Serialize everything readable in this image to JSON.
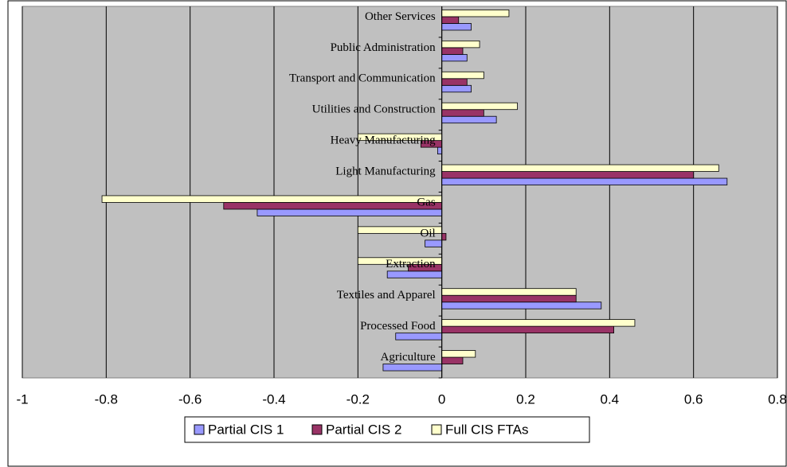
{
  "chart_data": {
    "type": "hbar",
    "categories": [
      "Agriculture",
      "Processed Food",
      "Textiles and Apparel",
      "Extraction",
      "Oil",
      "Gas",
      "Light Manufacturing",
      "Heavy Manufacturing",
      "Utilities and Construction",
      "Transport and Communication",
      "Public Administration",
      "Other Services"
    ],
    "series": [
      {
        "name": "Partial CIS 1",
        "color": "#9999ff",
        "values": [
          -0.14,
          -0.11,
          0.38,
          -0.13,
          -0.04,
          -0.44,
          0.68,
          -0.01,
          0.13,
          0.07,
          0.06,
          0.07
        ]
      },
      {
        "name": "Partial CIS 2",
        "color": "#993366",
        "values": [
          0.05,
          0.41,
          0.32,
          -0.08,
          0.01,
          -0.52,
          0.6,
          -0.05,
          0.1,
          0.06,
          0.05,
          0.04
        ]
      },
      {
        "name": "Full CIS FTAs",
        "color": "#ffffcc",
        "values": [
          0.08,
          0.46,
          0.32,
          -0.2,
          -0.2,
          -0.81,
          0.66,
          -0.2,
          0.18,
          0.1,
          0.09,
          0.16
        ]
      }
    ],
    "xlim": [
      -1,
      0.8
    ],
    "xticks": [
      -1,
      -0.8,
      -0.6,
      -0.4,
      -0.2,
      0,
      0.2,
      0.4,
      0.6,
      0.8
    ],
    "grid": true,
    "legend": "bottom"
  }
}
